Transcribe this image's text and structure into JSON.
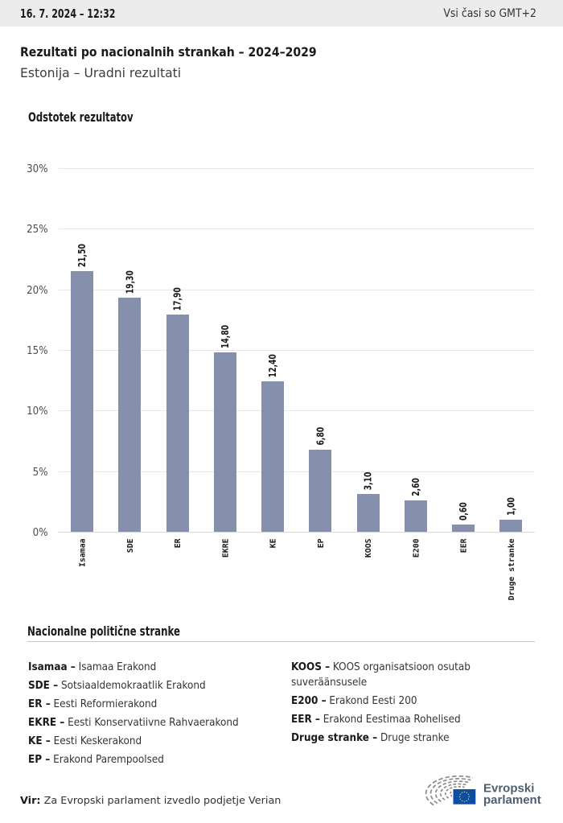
{
  "header": {
    "datetime": "16. 7. 2024 – 12:32",
    "timezone_note": "Vsi časi so GMT+2"
  },
  "page": {
    "title": "Rezultati po nacionalnih strankah – 2024–2029",
    "subtitle": "Estonija – Uradni rezultati"
  },
  "chart_data": {
    "type": "bar",
    "title": "Odstotek rezultatov",
    "categories": [
      "Isamaa",
      "SDE",
      "ER",
      "EKRE",
      "KE",
      "EP",
      "KOOS",
      "E200",
      "EER",
      "Druge stranke"
    ],
    "values": [
      21.5,
      19.3,
      17.9,
      14.8,
      12.4,
      6.8,
      3.1,
      2.6,
      0.6,
      1.0
    ],
    "value_labels": [
      "21,50",
      "19,30",
      "17,90",
      "14,80",
      "12,40",
      "6,80",
      "3,10",
      "2,60",
      "0,60",
      "1,00"
    ],
    "ylabel": "Odstotek rezultatov",
    "xlabel": "",
    "ylim": [
      0,
      30
    ],
    "ytick_step": 5,
    "ytick_labels": [
      "0%",
      "5%",
      "10%",
      "15%",
      "20%",
      "25%",
      "30%"
    ],
    "grid": true,
    "legend_position": "none",
    "bar_color": "#8690ac"
  },
  "party_legend": {
    "heading": "Nacionalne politične stranke",
    "separator": "–",
    "columns": [
      [
        {
          "abbr": "Isamaa",
          "name": "Isamaa Erakond"
        },
        {
          "abbr": "SDE",
          "name": "Sotsiaaldemokraatlik Erakond"
        },
        {
          "abbr": "ER",
          "name": "Eesti Reformierakond"
        },
        {
          "abbr": "EKRE",
          "name": "Eesti Konservatiivne Rahvaerakond"
        },
        {
          "abbr": "KE",
          "name": "Eesti Keskerakond"
        },
        {
          "abbr": "EP",
          "name": "Erakond Parempoolsed"
        }
      ],
      [
        {
          "abbr": "KOOS",
          "name": "KOOS organisatsioon osutab suveräänsusele"
        },
        {
          "abbr": "E200",
          "name": "Erakond Eesti 200"
        },
        {
          "abbr": "EER",
          "name": "Erakond Eestimaa Rohelised"
        },
        {
          "abbr": "Druge stranke",
          "name": "Druge stranke"
        }
      ]
    ]
  },
  "footer": {
    "source_label": "Vir:",
    "source_text": " Za Evropski parlament izvedlo podjetje Verian",
    "logo_line1": "Evropski",
    "logo_line2": "parlament"
  },
  "colors": {
    "topbar_bg": "#ececec",
    "bar": "#8690ac",
    "gridline": "#e8e8e8",
    "axis_line": "#d8d8d8",
    "logo_text": "#4d5e6e",
    "flag_blue": "#0b4ea2",
    "flag_star": "#ffd617"
  }
}
